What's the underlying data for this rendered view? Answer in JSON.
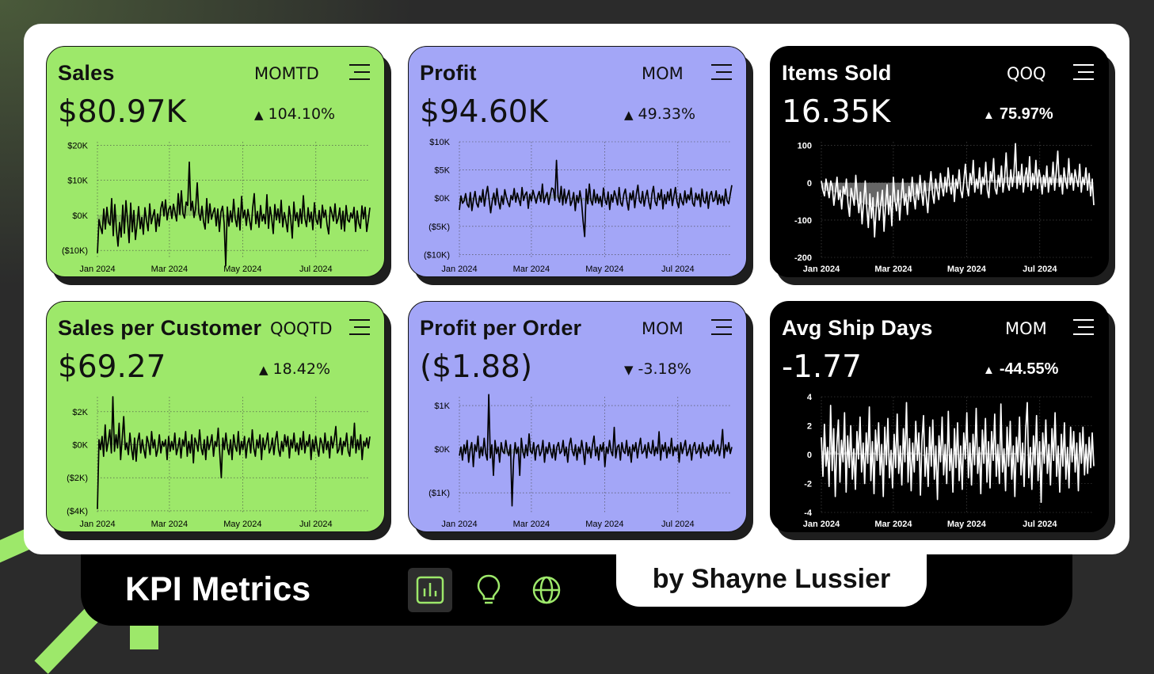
{
  "footer": {
    "title": "KPI Metrics",
    "author": "by Shayne Lussier",
    "nav": [
      {
        "icon": "bar-chart-icon",
        "active": true
      },
      {
        "icon": "lightbulb-icon",
        "active": false
      },
      {
        "icon": "globe-icon",
        "active": false
      }
    ]
  },
  "colors": {
    "green": "#9de86a",
    "purple": "#a3a6f7",
    "black": "#000000",
    "accent": "#9de86a"
  },
  "cards": [
    {
      "title": "Sales",
      "period": "MOMTD",
      "value": "$80.97K",
      "change": "104.10%",
      "direction": "up"
    },
    {
      "title": "Profit",
      "period": "MOM",
      "value": "$94.60K",
      "change": "49.33%",
      "direction": "up"
    },
    {
      "title": "Items Sold",
      "period": "QOQ",
      "value": "16.35K",
      "change": "75.97%",
      "direction": "up"
    },
    {
      "title": "Sales per Customer",
      "period": "QOQTD",
      "value": "$69.27",
      "change": "18.42%",
      "direction": "up"
    },
    {
      "title": "Profit per Order",
      "period": "MOM",
      "value": "($1.88)",
      "change": "-3.18%",
      "direction": "down"
    },
    {
      "title": "Avg Ship Days",
      "period": "MOM",
      "value": "-1.77",
      "change": "-44.55%",
      "direction": "up"
    }
  ],
  "chart_data": [
    {
      "type": "line",
      "x_range": [
        "2024-01-01",
        "2024-08-15"
      ],
      "x_ticks": [
        "Jan 2024",
        "Mar 2024",
        "May 2024",
        "Jul 2024"
      ],
      "y_ticks": [
        20000,
        10000,
        0,
        -10000
      ],
      "y_tick_labels": [
        "$20K",
        "$10K",
        "$0K",
        "($10K)"
      ],
      "ylim": [
        -12000,
        21000
      ],
      "grid": true,
      "y": [
        -10800,
        -1200,
        -3400,
        -5200,
        1800,
        -3900,
        2300,
        -1900,
        -2800,
        4800,
        -5800,
        3100,
        -4100,
        -8800,
        -2000,
        -6200,
        2900,
        -5100,
        4200,
        -1200,
        -7800,
        3500,
        -4700,
        1400,
        -6900,
        -2600,
        2500,
        -3800,
        -600,
        -5400,
        2200,
        -1500,
        -4400,
        3300,
        -2400,
        -300,
        1600,
        -4600,
        400,
        -3100,
        1900,
        3900,
        -200,
        4400,
        -1300,
        1700,
        2600,
        -900,
        3200,
        800,
        -1600,
        6200,
        300,
        7000,
        500,
        -800,
        3800,
        2800,
        15200,
        1400,
        4000,
        -600,
        2000,
        9300,
        800,
        -1400,
        2600,
        -1800,
        -3900,
        4800,
        -2200,
        3300,
        -1100,
        800,
        2100,
        -3000,
        1800,
        -4600,
        1000,
        2600,
        -2300,
        -14400,
        2400,
        -3100,
        1300,
        -1900,
        4600,
        -900,
        -3200,
        2100,
        -4200,
        5400,
        -700,
        1500,
        -2900,
        1700,
        -1200,
        -4100,
        2100,
        6200,
        -2400,
        1100,
        -3400,
        2800,
        -1600,
        300,
        -2400,
        5900,
        -3700,
        2400,
        -800,
        -5200,
        3100,
        -1300,
        1800,
        -2100,
        4300,
        -3300,
        800,
        -1700,
        -4700,
        2600,
        -900,
        -6500,
        3800,
        -1500,
        800,
        -3200,
        1800,
        -2300,
        5600,
        -900,
        -3200,
        2200,
        -1800,
        900,
        -4100,
        3600,
        -1200,
        -2500,
        1400,
        -3600,
        2900,
        -600,
        1500,
        -2800,
        -5300,
        2400,
        700,
        -1600,
        3300,
        -2300,
        -900,
        2100,
        -3900,
        1200,
        -4500,
        2800,
        -1300,
        -1900,
        700,
        -800,
        2300,
        -4600,
        1300,
        -2200,
        -3700,
        2700,
        -1000,
        2300,
        -4600,
        -1300,
        2200
      ]
    },
    {
      "type": "line",
      "x_range": [
        "2024-01-01",
        "2024-08-15"
      ],
      "x_ticks": [
        "Jan 2024",
        "Mar 2024",
        "May 2024",
        "Jul 2024"
      ],
      "y_ticks": [
        10000,
        5000,
        0,
        -5000,
        -10000
      ],
      "y_tick_labels": [
        "$10K",
        "$5K",
        "$0K",
        "($5K)",
        "($10K)"
      ],
      "ylim": [
        -10500,
        10000
      ],
      "grid": true,
      "y": [
        -2100,
        400,
        -900,
        -500,
        800,
        -1100,
        -1600,
        1000,
        -2200,
        -300,
        1200,
        -900,
        -1600,
        400,
        -700,
        1500,
        -1400,
        600,
        2100,
        -300,
        -2600,
        -500,
        900,
        -1200,
        1700,
        -600,
        -1900,
        400,
        -1100,
        1500,
        200,
        -800,
        -1500,
        500,
        -300,
        1700,
        -700,
        900,
        -200,
        -1300,
        1900,
        -400,
        600,
        1100,
        -1800,
        700,
        -500,
        1400,
        300,
        -900,
        400,
        1200,
        -600,
        2500,
        -800,
        200,
        1000,
        -1100,
        500,
        1800,
        1600,
        -400,
        6700,
        300,
        -700,
        2100,
        -1200,
        1600,
        -900,
        400,
        1400,
        -1300,
        -500,
        1000,
        -2200,
        500,
        -800,
        1300,
        -600,
        -4100,
        -6800,
        1600,
        -1000,
        2500,
        -400,
        -1200,
        1500,
        -800,
        700,
        -900,
        300,
        -1500,
        1800,
        -300,
        -1100,
        1100,
        -2000,
        600,
        -700,
        1300,
        300,
        -1200,
        1900,
        -800,
        -1400,
        700,
        1600,
        -500,
        -2100,
        900,
        -300,
        1300,
        -1700,
        700,
        2300,
        -500,
        -900,
        1200,
        -1400,
        300,
        1400,
        -700,
        -1900,
        800,
        2100,
        -600,
        -1300,
        900,
        -300,
        1500,
        -1900,
        600,
        -1000,
        1100,
        -400,
        1600,
        -1300,
        400,
        1900,
        -600,
        -1700,
        800,
        -500,
        -1200,
        1300,
        -800,
        600,
        -300,
        1800,
        -900,
        -1400,
        900,
        -300,
        700,
        -1500,
        1600,
        -500,
        -900,
        1100,
        -1800,
        500,
        1200,
        -600,
        -300,
        1300,
        -1100,
        600,
        -900,
        400,
        -1300,
        1600,
        -500,
        -1000,
        700,
        2300
      ]
    },
    {
      "type": "area",
      "x_range": [
        "2024-01-01",
        "2024-08-15"
      ],
      "x_ticks": [
        "Jan 2024",
        "Mar 2024",
        "May 2024",
        "Jul 2024"
      ],
      "y_ticks": [
        100,
        0,
        -100,
        -200
      ],
      "y_tick_labels": [
        "100",
        "0",
        "-100",
        "-200"
      ],
      "ylim": [
        -200,
        110
      ],
      "grid": true,
      "y": [
        5,
        -20,
        -35,
        10,
        -15,
        -40,
        5,
        -10,
        -60,
        -25,
        15,
        -45,
        -20,
        -70,
        -10,
        -30,
        10,
        -55,
        -90,
        -15,
        -35,
        -60,
        20,
        -40,
        -80,
        -25,
        -110,
        -50,
        5,
        -65,
        -120,
        -30,
        -95,
        -40,
        -145,
        -70,
        -25,
        -100,
        -55,
        -20,
        -130,
        -60,
        -5,
        -85,
        -35,
        -115,
        15,
        -45,
        -75,
        -20,
        -100,
        -40,
        10,
        -60,
        -30,
        -85,
        -10,
        -50,
        15,
        -35,
        -70,
        -5,
        -45,
        20,
        -25,
        -60,
        5,
        -40,
        -80,
        -15,
        30,
        -30,
        -55,
        10,
        -20,
        -45,
        25,
        -10,
        -35,
        15,
        -25,
        40,
        -5,
        -30,
        20,
        -50,
        10,
        -15,
        35,
        -20,
        -40,
        5,
        50,
        -10,
        -35,
        25,
        -5,
        60,
        -25,
        10,
        -15,
        40,
        -30,
        15,
        -5,
        55,
        -20,
        -40,
        30,
        5,
        65,
        -15,
        -30,
        20,
        -10,
        45,
        -25,
        10,
        80,
        -5,
        -20,
        35,
        -10,
        25,
        105,
        -15,
        30,
        -5,
        50,
        -25,
        15,
        40,
        -10,
        70,
        -20,
        25,
        -5,
        60,
        -15,
        35,
        10,
        -30,
        20,
        -10,
        45,
        -25,
        15,
        -5,
        55,
        -20,
        30,
        85,
        -10,
        20,
        -30,
        40,
        5,
        -15,
        65,
        -5,
        25,
        -20,
        35,
        10,
        -10,
        50,
        -25,
        15,
        -5,
        40,
        -20,
        25,
        -35,
        10,
        -60
      ]
    },
    {
      "type": "line",
      "x_range": [
        "2024-01-01",
        "2024-08-15"
      ],
      "x_ticks": [
        "Jan 2024",
        "Mar 2024",
        "May 2024",
        "Jul 2024"
      ],
      "y_ticks": [
        2000,
        0,
        -2000,
        -4000
      ],
      "y_tick_labels": [
        "$2K",
        "$0K",
        "($2K)",
        "($4K)"
      ],
      "ylim": [
        -4100,
        2900
      ],
      "grid": true,
      "y": [
        -3900,
        300,
        -300,
        500,
        -700,
        1200,
        -400,
        200,
        900,
        -500,
        2900,
        -400,
        600,
        -200,
        1300,
        -900,
        400,
        1700,
        -300,
        100,
        -600,
        700,
        -200,
        -900,
        400,
        -1000,
        200,
        700,
        -500,
        300,
        -300,
        -800,
        500,
        100,
        -600,
        800,
        -200,
        300,
        -700,
        -300,
        600,
        -500,
        200,
        -100,
        300,
        -900,
        500,
        -400,
        200,
        -300,
        700,
        -600,
        -200,
        400,
        -800,
        300,
        -100,
        800,
        -700,
        200,
        -500,
        600,
        -1100,
        400,
        100,
        -400,
        900,
        -200,
        -600,
        300,
        -900,
        500,
        -300,
        100,
        600,
        -700,
        200,
        -100,
        1000,
        -500,
        -2000,
        400,
        -300,
        700,
        -200,
        -600,
        300,
        -900,
        600,
        -100,
        -400,
        800,
        -600,
        200,
        -300,
        500,
        -800,
        100,
        400,
        -500,
        900,
        -200,
        -700,
        300,
        -200,
        600,
        -900,
        400,
        -300,
        100,
        700,
        -500,
        -200,
        400,
        -600,
        300,
        800,
        -300,
        -700,
        200,
        -400,
        600,
        -100,
        500,
        -800,
        300,
        -200,
        700,
        -400,
        100,
        -600,
        400,
        -300,
        800,
        -500,
        200,
        -100,
        600,
        -900,
        300,
        -400,
        500,
        -200,
        -700,
        400,
        100,
        -500,
        700,
        -300,
        200,
        -800,
        500,
        -200,
        300,
        1100,
        -500,
        -300,
        400,
        -600,
        200,
        -100,
        700,
        -400,
        -700,
        500,
        -200,
        1300,
        -500,
        300,
        -300,
        600,
        -900,
        200,
        -100,
        400,
        -200,
        500
      ]
    },
    {
      "type": "line",
      "x_range": [
        "2024-01-01",
        "2024-08-15"
      ],
      "x_ticks": [
        "Jan 2024",
        "Mar 2024",
        "May 2024",
        "Jul 2024"
      ],
      "y_ticks": [
        1000,
        0,
        -1000
      ],
      "y_tick_labels": [
        "$1K",
        "$0K",
        "($1K)"
      ],
      "ylim": [
        -1450,
        1200
      ],
      "grid": true,
      "y": [
        -150,
        50,
        -250,
        100,
        -100,
        200,
        -300,
        0,
        150,
        -400,
        100,
        -50,
        300,
        -200,
        50,
        -150,
        250,
        -100,
        -250,
        1250,
        -200,
        100,
        -600,
        200,
        -100,
        50,
        -300,
        150,
        -50,
        -100,
        200,
        -50,
        -150,
        100,
        -1300,
        -250,
        150,
        -100,
        50,
        -600,
        250,
        -50,
        -200,
        100,
        -150,
        350,
        -50,
        -100,
        150,
        -250,
        50,
        100,
        -150,
        -50,
        200,
        -300,
        50,
        -100,
        150,
        -50,
        -200,
        100,
        -250,
        50,
        150,
        -100,
        -50,
        200,
        -150,
        50,
        -300,
        100,
        250,
        -50,
        -150,
        100,
        -250,
        50,
        -100,
        200,
        -50,
        -350,
        150,
        -100,
        50,
        -200,
        100,
        300,
        -150,
        50,
        -250,
        100,
        -50,
        150,
        -400,
        50,
        -100,
        200,
        -50,
        -150,
        500,
        -200,
        50,
        100,
        -250,
        150,
        -50,
        -100,
        200,
        -150,
        50,
        -300,
        100,
        -50,
        150,
        -200,
        50,
        250,
        -100,
        -50,
        100,
        -200,
        150,
        -50,
        -100,
        200,
        -150,
        50,
        -100,
        400,
        -250,
        100,
        -50,
        150,
        -200,
        50,
        -100,
        250,
        -150,
        50,
        -50,
        100,
        -300,
        150,
        -100,
        50,
        200,
        -150,
        -50,
        100,
        -250,
        50,
        150,
        -100,
        -50,
        100,
        -200,
        150,
        -50,
        -100,
        50,
        -150,
        100,
        -50,
        200,
        -100,
        -50,
        100,
        -150,
        50,
        450,
        -200,
        100,
        -50,
        150,
        -100,
        50
      ]
    },
    {
      "type": "area",
      "x_range": [
        "2024-01-01",
        "2024-08-15"
      ],
      "x_ticks": [
        "Jan 2024",
        "Mar 2024",
        "May 2024",
        "Jul 2024"
      ],
      "y_ticks": [
        4,
        2,
        0,
        -2,
        -4
      ],
      "y_tick_labels": [
        "4",
        "2",
        "0",
        "-2",
        "-4"
      ],
      "ylim": [
        -4,
        4
      ],
      "grid": true,
      "y": [
        1.2,
        -1.5,
        2.1,
        -0.8,
        0.5,
        -2.2,
        3.4,
        -1.1,
        1.8,
        -2.9,
        0.6,
        2.4,
        -1.9,
        1.0,
        -0.5,
        2.9,
        -2.6,
        1.3,
        -0.9,
        2.0,
        -1.7,
        0.4,
        -2.4,
        1.6,
        -0.3,
        2.6,
        -1.2,
        0.8,
        -2.0,
        1.5,
        -0.6,
        3.3,
        -1.8,
        0.9,
        -2.7,
        1.7,
        -0.4,
        2.2,
        -1.4,
        0.7,
        -2.9,
        1.9,
        -0.7,
        2.5,
        -1.6,
        0.3,
        -2.3,
        1.4,
        -0.9,
        2.8,
        -1.3,
        0.6,
        -2.1,
        1.8,
        -0.5,
        3.6,
        -1.9,
        1.1,
        -2.5,
        0.8,
        -1.2,
        2.3,
        -0.4,
        1.5,
        -2.8,
        0.9,
        2.7,
        -1.5,
        0.5,
        -2.2,
        1.9,
        -0.8,
        2.4,
        -1.7,
        0.6,
        -3.1,
        1.3,
        -0.5,
        2.6,
        -1.4,
        0.7,
        -2.0,
        3.0,
        -1.1,
        0.4,
        -2.6,
        1.8,
        -0.9,
        2.2,
        -1.8,
        0.6,
        -2.4,
        1.5,
        -0.3,
        2.9,
        -1.6,
        0.8,
        -2.1,
        1.4,
        -0.7,
        3.2,
        -1.3,
        0.5,
        -2.7,
        1.7,
        -0.6,
        2.5,
        -1.9,
        0.9,
        -2.3,
        1.6,
        -0.4,
        2.8,
        -1.5,
        0.7,
        -2.0,
        3.5,
        -1.2,
        0.4,
        -2.5,
        1.9,
        -0.8,
        2.3,
        -1.7,
        0.6,
        -2.9,
        1.2,
        -0.5,
        2.6,
        -1.4,
        0.8,
        -2.2,
        1.7,
        3.6,
        -1.6,
        0.5,
        -2.4,
        1.3,
        -0.7,
        2.7,
        -1.8,
        0.9,
        -3.3,
        1.5,
        -0.6,
        2.4,
        -1.3,
        0.7,
        -2.1,
        1.8,
        -0.4,
        2.9,
        -1.5,
        0.6,
        -2.6,
        1.4,
        -0.8,
        2.2,
        -1.7,
        0.5,
        -2.3,
        1.9,
        -0.5,
        1.6,
        -1.2,
        0.8,
        -2.5,
        1.5,
        -0.6,
        1.9,
        -1.4,
        0.7,
        -1.3,
        1.2,
        -0.9,
        1.5,
        -0.8
      ]
    }
  ]
}
